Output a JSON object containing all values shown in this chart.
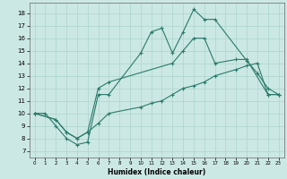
{
  "xlabel": "Humidex (Indice chaleur)",
  "bg_color": "#cce8e4",
  "grid_color": "#b0d8d0",
  "line_color": "#2a7a6a",
  "xlim": [
    -0.5,
    23.5
  ],
  "ylim": [
    6.5,
    18.8
  ],
  "xticks": [
    0,
    1,
    2,
    3,
    4,
    5,
    6,
    7,
    8,
    9,
    10,
    11,
    12,
    13,
    14,
    15,
    16,
    17,
    18,
    19,
    20,
    21,
    22,
    23
  ],
  "yticks": [
    7,
    8,
    9,
    10,
    11,
    12,
    13,
    14,
    15,
    16,
    17,
    18
  ],
  "line1_x": [
    0,
    1,
    2,
    3,
    4,
    5,
    6,
    7,
    10,
    11,
    12,
    13,
    14,
    15,
    16,
    17,
    20,
    21,
    22,
    23
  ],
  "line1_y": [
    10,
    10,
    9,
    8,
    7.5,
    7.7,
    11.5,
    11.5,
    14.8,
    16.5,
    16.8,
    14.8,
    16.5,
    18.3,
    17.5,
    17.5,
    14.2,
    13.2,
    12.0,
    11.5
  ],
  "line2_x": [
    0,
    2,
    3,
    4,
    5,
    6,
    7,
    13,
    14,
    15,
    16,
    17,
    19,
    20,
    22,
    23
  ],
  "line2_y": [
    10,
    9.5,
    8.5,
    8.0,
    8.5,
    12.0,
    12.5,
    14.0,
    15.0,
    16.0,
    16.0,
    14.0,
    14.3,
    14.3,
    11.5,
    11.5
  ],
  "line3_x": [
    0,
    2,
    3,
    4,
    5,
    6,
    7,
    10,
    11,
    12,
    13,
    14,
    15,
    16,
    17,
    19,
    20,
    21,
    22,
    23
  ],
  "line3_y": [
    10.0,
    9.5,
    8.5,
    8.0,
    8.5,
    9.2,
    10.0,
    10.5,
    10.8,
    11.0,
    11.5,
    12.0,
    12.2,
    12.5,
    13.0,
    13.5,
    13.8,
    14.0,
    11.5,
    11.5
  ]
}
